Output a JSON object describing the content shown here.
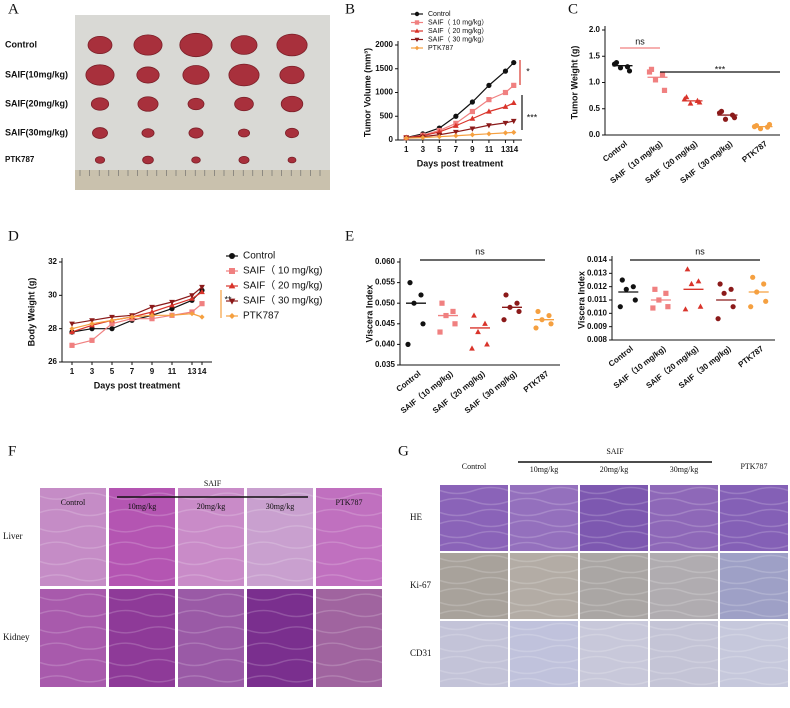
{
  "panel_a": {
    "label": "A",
    "rows": [
      "Control",
      "SAIF(10mg/kg)",
      "SAIF(20mg/kg)",
      "SAIF(30mg/kg)",
      "PTK787"
    ]
  },
  "chart_data": [
    {
      "panel": "B",
      "type": "line",
      "xlabel": "Days post treatment",
      "ylabel": "Tumor Volume (mm³)",
      "x": [
        1,
        3,
        5,
        7,
        9,
        11,
        13,
        14
      ],
      "xticks": [
        1,
        3,
        5,
        7,
        9,
        11,
        13,
        14
      ],
      "xlim": [
        0,
        15
      ],
      "ylim": [
        0,
        2000
      ],
      "yticks": [
        0,
        500,
        1000,
        1500,
        2000
      ],
      "series": [
        {
          "name": "Control",
          "color": "#111111",
          "marker": "circle",
          "values": [
            50,
            130,
            250,
            500,
            800,
            1150,
            1450,
            1630
          ]
        },
        {
          "name": "SAIF（ 10 mg/kg）",
          "color": "#f08080",
          "marker": "square",
          "values": [
            50,
            100,
            200,
            350,
            600,
            850,
            1000,
            1150
          ]
        },
        {
          "name": "SAIF（ 20 mg/kg）",
          "color": "#d9342b",
          "marker": "triangle",
          "values": [
            50,
            90,
            170,
            300,
            450,
            600,
            700,
            780
          ]
        },
        {
          "name": "SAIF（ 30 mg/kg）",
          "color": "#8b1a1a",
          "marker": "triangle-down",
          "values": [
            50,
            70,
            110,
            170,
            240,
            310,
            360,
            400
          ]
        },
        {
          "name": "PTK787",
          "color": "#f5a040",
          "marker": "diamond",
          "values": [
            40,
            50,
            70,
            90,
            110,
            130,
            150,
            160
          ]
        }
      ],
      "annotations": [
        "*",
        "***"
      ]
    },
    {
      "panel": "C",
      "type": "dot",
      "ylabel": "Tumor Weight (g)",
      "categories": [
        "Control",
        "SAIF（10 mg/kg)",
        "SAIF（20 mg/kg)",
        "SAIF（30 mg/kg)",
        "PTK787"
      ],
      "colors": [
        "#111111",
        "#f08080",
        "#d9342b",
        "#8b1a1a",
        "#f5a040"
      ],
      "ylim": [
        0,
        2.0
      ],
      "yticks": [
        {
          "value": 0,
          "label": "0.0"
        },
        0.5,
        {
          "value": 1,
          "label": "1.0"
        },
        1.5,
        {
          "value": 2,
          "label": "2.0"
        }
      ],
      "groups": [
        [
          1.38,
          1.3,
          1.28,
          1.22,
          1.35
        ],
        [
          1.25,
          1.15,
          1.05,
          0.85,
          1.2
        ],
        [
          0.72,
          0.65,
          0.6,
          0.62,
          0.68
        ],
        [
          0.45,
          0.38,
          0.3,
          0.33,
          0.42
        ],
        [
          0.18,
          0.15,
          0.12,
          0.2,
          0.16
        ]
      ],
      "means": [
        1.32,
        1.1,
        0.65,
        0.38,
        0.16
      ],
      "annotations": [
        "ns",
        "***"
      ]
    },
    {
      "panel": "D",
      "type": "line",
      "xlabel": "Days post treatment",
      "ylabel": "Body Weight (g)",
      "x": [
        1,
        3,
        5,
        7,
        9,
        11,
        13,
        14
      ],
      "xticks": [
        1,
        3,
        5,
        7,
        9,
        11,
        13,
        14
      ],
      "xlim": [
        0,
        15
      ],
      "ylim": [
        26,
        32
      ],
      "yticks": [
        26,
        28,
        30,
        32
      ],
      "series": [
        {
          "name": "Control",
          "color": "#111111",
          "marker": "circle",
          "values": [
            27.8,
            28.0,
            28.0,
            28.5,
            28.8,
            29.2,
            29.7,
            30.3
          ]
        },
        {
          "name": "SAIF（ 10 mg/kg)",
          "color": "#f08080",
          "marker": "square",
          "values": [
            27.0,
            27.3,
            28.3,
            28.6,
            28.6,
            28.8,
            29.0,
            29.5
          ]
        },
        {
          "name": "SAIF（ 20 mg/kg)",
          "color": "#d9342b",
          "marker": "triangle",
          "values": [
            27.8,
            28.2,
            28.5,
            28.7,
            29.0,
            29.4,
            29.8,
            30.2
          ]
        },
        {
          "name": "SAIF（ 30 mg/kg)",
          "color": "#8b1a1a",
          "marker": "triangle-down",
          "values": [
            28.3,
            28.5,
            28.7,
            28.8,
            29.3,
            29.6,
            30.0,
            30.5
          ]
        },
        {
          "name": "PTK787",
          "color": "#f5a040",
          "marker": "diamond",
          "values": [
            28.0,
            28.3,
            28.5,
            28.7,
            28.8,
            28.8,
            28.9,
            28.7
          ]
        }
      ],
      "legend": "right",
      "annotations": [
        "**"
      ]
    },
    {
      "panel": "E",
      "type": "dot",
      "ylabel": "Viscera Index",
      "categories": [
        "Control",
        "SAIF（10 mg/kg)",
        "SAIF（20 mg/kg)",
        "SAIF（30 mg/kg)",
        "PTK787"
      ],
      "colors": [
        "#111111",
        "#f08080",
        "#d9342b",
        "#8b1a1a",
        "#f5a040"
      ],
      "ylim": [
        0.035,
        0.06
      ],
      "yticks": [
        0.035,
        {
          "value": 0.04,
          "label": "0.040"
        },
        0.045,
        {
          "value": 0.05,
          "label": "0.050"
        },
        0.055,
        {
          "value": 0.06,
          "label": "0.060"
        }
      ],
      "groups": [
        [
          0.055,
          0.052,
          0.05,
          0.045,
          0.04
        ],
        [
          0.05,
          0.048,
          0.047,
          0.045,
          0.043
        ],
        [
          0.047,
          0.045,
          0.043,
          0.04,
          0.039
        ],
        [
          0.052,
          0.05,
          0.049,
          0.048,
          0.046
        ],
        [
          0.048,
          0.047,
          0.046,
          0.045,
          0.044
        ]
      ],
      "means": [
        0.05,
        0.047,
        0.044,
        0.049,
        0.046
      ],
      "annotations": [
        "ns"
      ]
    },
    {
      "type": "dot",
      "ylabel": "Viscera Index",
      "categories": [
        "Control",
        "SAIF（10 mg/kg)",
        "SAIF（20 mg/kg)",
        "SAIF（30 mg/kg)",
        "PTK787"
      ],
      "colors": [
        "#111111",
        "#f08080",
        "#d9342b",
        "#8b1a1a",
        "#f5a040"
      ],
      "ylim": [
        0.008,
        0.014
      ],
      "yticks": [
        0.008,
        0.009,
        {
          "value": 0.01,
          "label": "0.010"
        },
        0.011,
        0.012,
        0.013,
        0.014
      ],
      "groups": [
        [
          0.0125,
          0.012,
          0.0118,
          0.011,
          0.0105
        ],
        [
          0.0118,
          0.0115,
          0.011,
          0.0105,
          0.0104
        ],
        [
          0.0133,
          0.0124,
          0.0122,
          0.0105,
          0.0103
        ],
        [
          0.0122,
          0.0118,
          0.0115,
          0.0105,
          0.0096
        ],
        [
          0.0127,
          0.0122,
          0.0116,
          0.0109,
          0.0105
        ]
      ],
      "means": [
        0.0116,
        0.011,
        0.0118,
        0.011,
        0.0116
      ],
      "annotations": [
        "ns"
      ]
    }
  ],
  "panel_f": {
    "label": "F",
    "group": "SAIF",
    "columns": [
      "Control",
      "10mg/kg",
      "20mg/kg",
      "30mg/kg",
      "PTK787"
    ],
    "rows": [
      "Liver",
      "Kidney"
    ]
  },
  "panel_g": {
    "label": "G",
    "group": "SAIF",
    "columns": [
      "Control",
      "10mg/kg",
      "20mg/kg",
      "30mg/kg",
      "PTK787"
    ],
    "rows": [
      "HE",
      "Ki-67",
      "CD31"
    ]
  }
}
